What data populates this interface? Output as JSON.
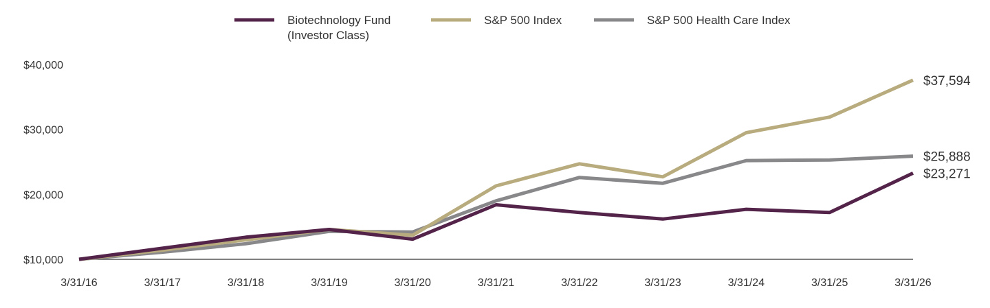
{
  "chart_data": {
    "type": "line",
    "title": "",
    "xlabel": "",
    "ylabel": "",
    "categories": [
      "3/31/16",
      "3/31/17",
      "3/31/18",
      "3/31/19",
      "3/31/20",
      "3/31/21",
      "3/31/22",
      "3/31/23",
      "3/31/24",
      "3/31/25",
      "3/31/26"
    ],
    "y_ticks": [
      10000,
      20000,
      30000,
      40000
    ],
    "y_tick_labels": [
      "$10,000",
      "$20,000",
      "$30,000",
      "$40,000"
    ],
    "ylim": [
      10000,
      40000
    ],
    "grid": false,
    "legend_position": "top-center",
    "series": [
      {
        "name_lines": [
          "Biotechnology Fund",
          "(Investor Class)"
        ],
        "color": "#53234a",
        "values": [
          10000,
          11700,
          13400,
          14600,
          13100,
          18400,
          17200,
          16200,
          17700,
          17200,
          23271
        ],
        "end_label": "$23,271"
      },
      {
        "name_lines": [
          "S&P 500 Index"
        ],
        "color": "#b8ab7e",
        "values": [
          10000,
          11400,
          13000,
          14600,
          13700,
          21300,
          24700,
          22700,
          29500,
          31900,
          37594
        ],
        "end_label": "$37,594"
      },
      {
        "name_lines": [
          "S&P 500 Health Care Index"
        ],
        "color": "#88888b",
        "values": [
          10000,
          11100,
          12400,
          14300,
          14200,
          19000,
          22600,
          21700,
          25200,
          25300,
          25888
        ],
        "end_label": "$25,888"
      }
    ]
  }
}
